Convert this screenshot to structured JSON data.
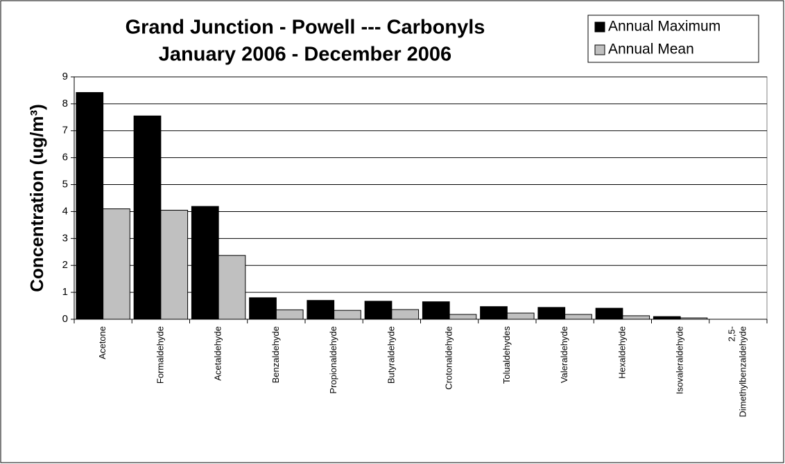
{
  "chart_data": {
    "type": "bar",
    "title": "Grand Junction - Powell --- Carbonyls",
    "subtitle": "January 2006 - December 2006",
    "y_label": "Concentration  (ug/m³)",
    "categories": [
      "Acetone",
      "Formaldehyde",
      "Acetaldehyde",
      "Benzaldehyde",
      "Propionaldehyde",
      "Butyraldehyde",
      "Crotonaldehyde",
      "Tolualdehydes",
      "Valeraldehyde",
      "Hexaldehyde",
      "Isovaleraldehyde",
      "2,5-\nDimethylbenzaldehyde"
    ],
    "series": [
      {
        "name": "Annual Maximum",
        "color": "#000000",
        "values": [
          8.42,
          7.55,
          4.19,
          0.8,
          0.7,
          0.67,
          0.65,
          0.47,
          0.44,
          0.41,
          0.1,
          0
        ]
      },
      {
        "name": "Annual Mean",
        "color": "#c0c0c0",
        "values": [
          4.1,
          4.05,
          2.37,
          0.35,
          0.33,
          0.36,
          0.18,
          0.23,
          0.18,
          0.13,
          0.05,
          0
        ]
      }
    ],
    "ylim": [
      0,
      9
    ],
    "yticks": [
      0,
      1,
      2,
      3,
      4,
      5,
      6,
      7,
      8,
      9
    ],
    "grid": true,
    "legend": "top-right"
  }
}
